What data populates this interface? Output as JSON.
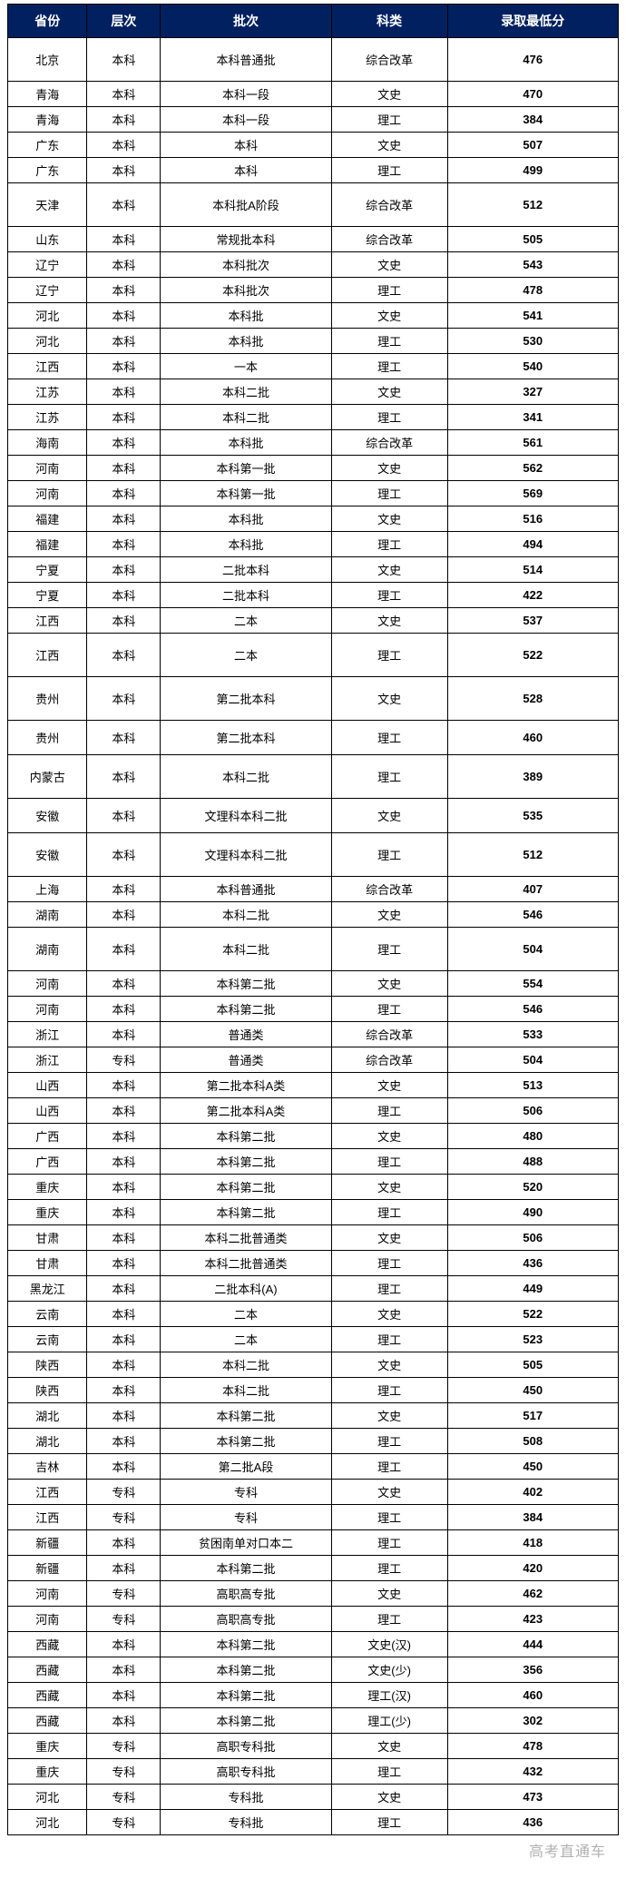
{
  "table": {
    "header_bg": "#002060",
    "header_fg": "#ffffff",
    "border_color": "#000000",
    "columns": [
      "省份",
      "层次",
      "批次",
      "科类",
      "录取最低分"
    ],
    "col_widths_pct": [
      13,
      12,
      28,
      19,
      28
    ],
    "rows": [
      {
        "cells": [
          "北京",
          "本科",
          "本科普通批",
          "综合改革",
          "476"
        ],
        "h": "tall"
      },
      {
        "cells": [
          "青海",
          "本科",
          "本科一段",
          "文史",
          "470"
        ]
      },
      {
        "cells": [
          "青海",
          "本科",
          "本科一段",
          "理工",
          "384"
        ]
      },
      {
        "cells": [
          "广东",
          "本科",
          "本科",
          "文史",
          "507"
        ]
      },
      {
        "cells": [
          "广东",
          "本科",
          "本科",
          "理工",
          "499"
        ]
      },
      {
        "cells": [
          "天津",
          "本科",
          "本科批A阶段",
          "综合改革",
          "512"
        ],
        "h": "tall"
      },
      {
        "cells": [
          "山东",
          "本科",
          "常规批本科",
          "综合改革",
          "505"
        ]
      },
      {
        "cells": [
          "辽宁",
          "本科",
          "本科批次",
          "文史",
          "543"
        ]
      },
      {
        "cells": [
          "辽宁",
          "本科",
          "本科批次",
          "理工",
          "478"
        ]
      },
      {
        "cells": [
          "河北",
          "本科",
          "本科批",
          "文史",
          "541"
        ]
      },
      {
        "cells": [
          "河北",
          "本科",
          "本科批",
          "理工",
          "530"
        ]
      },
      {
        "cells": [
          "江西",
          "本科",
          "一本",
          "理工",
          "540"
        ]
      },
      {
        "cells": [
          "江苏",
          "本科",
          "本科二批",
          "文史",
          "327"
        ]
      },
      {
        "cells": [
          "江苏",
          "本科",
          "本科二批",
          "理工",
          "341"
        ]
      },
      {
        "cells": [
          "海南",
          "本科",
          "本科批",
          "综合改革",
          "561"
        ]
      },
      {
        "cells": [
          "河南",
          "本科",
          "本科第一批",
          "文史",
          "562"
        ]
      },
      {
        "cells": [
          "河南",
          "本科",
          "本科第一批",
          "理工",
          "569"
        ]
      },
      {
        "cells": [
          "福建",
          "本科",
          "本科批",
          "文史",
          "516"
        ]
      },
      {
        "cells": [
          "福建",
          "本科",
          "本科批",
          "理工",
          "494"
        ]
      },
      {
        "cells": [
          "宁夏",
          "本科",
          "二批本科",
          "文史",
          "514"
        ]
      },
      {
        "cells": [
          "宁夏",
          "本科",
          "二批本科",
          "理工",
          "422"
        ]
      },
      {
        "cells": [
          "江西",
          "本科",
          "二本",
          "文史",
          "537"
        ]
      },
      {
        "cells": [
          "江西",
          "本科",
          "二本",
          "理工",
          "522"
        ],
        "h": "tall"
      },
      {
        "cells": [
          "贵州",
          "本科",
          "第二批本科",
          "文史",
          "528"
        ],
        "h": "tall"
      },
      {
        "cells": [
          "贵州",
          "本科",
          "第二批本科",
          "理工",
          "460"
        ],
        "h": "med"
      },
      {
        "cells": [
          "内蒙古",
          "本科",
          "本科二批",
          "理工",
          "389"
        ],
        "h": "tall"
      },
      {
        "cells": [
          "安徽",
          "本科",
          "文理科本科二批",
          "文史",
          "535"
        ],
        "h": "med"
      },
      {
        "cells": [
          "安徽",
          "本科",
          "文理科本科二批",
          "理工",
          "512"
        ],
        "h": "tall"
      },
      {
        "cells": [
          "上海",
          "本科",
          "本科普通批",
          "综合改革",
          "407"
        ]
      },
      {
        "cells": [
          "湖南",
          "本科",
          "本科二批",
          "文史",
          "546"
        ]
      },
      {
        "cells": [
          "湖南",
          "本科",
          "本科二批",
          "理工",
          "504"
        ],
        "h": "tall"
      },
      {
        "cells": [
          "河南",
          "本科",
          "本科第二批",
          "文史",
          "554"
        ]
      },
      {
        "cells": [
          "河南",
          "本科",
          "本科第二批",
          "理工",
          "546"
        ]
      },
      {
        "cells": [
          "浙江",
          "本科",
          "普通类",
          "综合改革",
          "533"
        ]
      },
      {
        "cells": [
          "浙江",
          "专科",
          "普通类",
          "综合改革",
          "504"
        ]
      },
      {
        "cells": [
          "山西",
          "本科",
          "第二批本科A类",
          "文史",
          "513"
        ]
      },
      {
        "cells": [
          "山西",
          "本科",
          "第二批本科A类",
          "理工",
          "506"
        ]
      },
      {
        "cells": [
          "广西",
          "本科",
          "本科第二批",
          "文史",
          "480"
        ]
      },
      {
        "cells": [
          "广西",
          "本科",
          "本科第二批",
          "理工",
          "488"
        ]
      },
      {
        "cells": [
          "重庆",
          "本科",
          "本科第二批",
          "文史",
          "520"
        ]
      },
      {
        "cells": [
          "重庆",
          "本科",
          "本科第二批",
          "理工",
          "490"
        ]
      },
      {
        "cells": [
          "甘肃",
          "本科",
          "本科二批普通类",
          "文史",
          "506"
        ]
      },
      {
        "cells": [
          "甘肃",
          "本科",
          "本科二批普通类",
          "理工",
          "436"
        ]
      },
      {
        "cells": [
          "黑龙江",
          "本科",
          "二批本科(A)",
          "理工",
          "449"
        ]
      },
      {
        "cells": [
          "云南",
          "本科",
          "二本",
          "文史",
          "522"
        ]
      },
      {
        "cells": [
          "云南",
          "本科",
          "二本",
          "理工",
          "523"
        ]
      },
      {
        "cells": [
          "陕西",
          "本科",
          "本科二批",
          "文史",
          "505"
        ]
      },
      {
        "cells": [
          "陕西",
          "本科",
          "本科二批",
          "理工",
          "450"
        ]
      },
      {
        "cells": [
          "湖北",
          "本科",
          "本科第二批",
          "文史",
          "517"
        ]
      },
      {
        "cells": [
          "湖北",
          "本科",
          "本科第二批",
          "理工",
          "508"
        ]
      },
      {
        "cells": [
          "吉林",
          "本科",
          "第二批A段",
          "理工",
          "450"
        ]
      },
      {
        "cells": [
          "江西",
          "专科",
          "专科",
          "文史",
          "402"
        ]
      },
      {
        "cells": [
          "江西",
          "专科",
          "专科",
          "理工",
          "384"
        ]
      },
      {
        "cells": [
          "新疆",
          "本科",
          "贫困南单对口本二",
          "理工",
          "418"
        ]
      },
      {
        "cells": [
          "新疆",
          "本科",
          "本科第二批",
          "理工",
          "420"
        ]
      },
      {
        "cells": [
          "河南",
          "专科",
          "高职高专批",
          "文史",
          "462"
        ]
      },
      {
        "cells": [
          "河南",
          "专科",
          "高职高专批",
          "理工",
          "423"
        ]
      },
      {
        "cells": [
          "西藏",
          "本科",
          "本科第二批",
          "文史(汉)",
          "444"
        ]
      },
      {
        "cells": [
          "西藏",
          "本科",
          "本科第二批",
          "文史(少)",
          "356"
        ]
      },
      {
        "cells": [
          "西藏",
          "本科",
          "本科第二批",
          "理工(汉)",
          "460"
        ]
      },
      {
        "cells": [
          "西藏",
          "本科",
          "本科第二批",
          "理工(少)",
          "302"
        ]
      },
      {
        "cells": [
          "重庆",
          "专科",
          "高职专科批",
          "文史",
          "478"
        ]
      },
      {
        "cells": [
          "重庆",
          "专科",
          "高职专科批",
          "理工",
          "432"
        ]
      },
      {
        "cells": [
          "河北",
          "专科",
          "专科批",
          "文史",
          "473"
        ]
      },
      {
        "cells": [
          "河北",
          "专科",
          "专科批",
          "理工",
          "436"
        ]
      }
    ]
  },
  "watermark": "高考直通车",
  "watermark_color": "#b0b0b0"
}
